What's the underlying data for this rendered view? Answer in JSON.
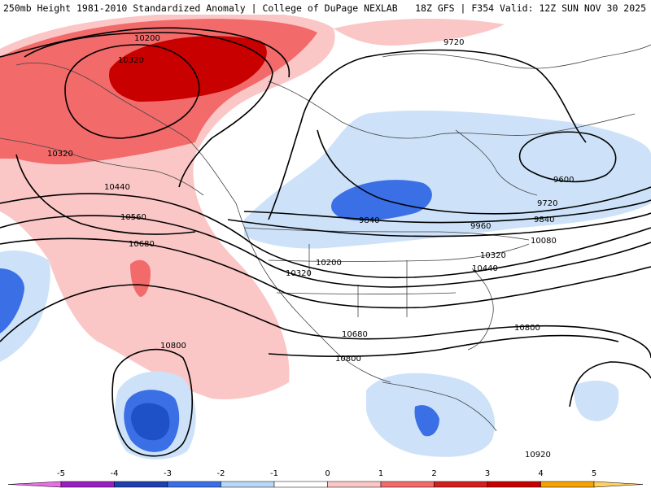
{
  "header": {
    "left_title": "250mb Height 1981-2010 Standardized Anomaly | College of DuPage NEXLAB",
    "right_title": "18Z GFS | F354 Valid: 12Z SUN NOV 30 2025"
  },
  "contour_labels": {
    "l10200_nw": "10200",
    "l10320_nw": "10320",
    "l10320_ak": "10320",
    "l10440_w": "10440",
    "l10560_w": "10560",
    "l10680_w": "10680",
    "l10800_sw": "10800",
    "l9720_n": "9720",
    "l9600_e": "9600",
    "l9720_e": "9720",
    "l9840_c": "9840",
    "l9840_e": "9840",
    "l9960_e": "9960",
    "l10080_e": "10080",
    "l10200_c": "10200",
    "l10320_c": "10320",
    "l10320_e": "10320",
    "l10440_e": "10440",
    "l10680_c": "10680",
    "l10800_c": "10800",
    "l10800_e": "10800",
    "l10920_se": "10920"
  },
  "colorbar": {
    "ticks": [
      "-5",
      "-4",
      "-3",
      "-2",
      "-1",
      "0",
      "1",
      "2",
      "3",
      "4",
      "5"
    ],
    "colors": [
      "#e86ee8",
      "#9a1fc0",
      "#1e3fae",
      "#3a6fe6",
      "#b8d8f8",
      "#ffffff",
      "#fbc6c6",
      "#f26a6a",
      "#d21f1f",
      "#c80000",
      "#f5a300",
      "#ffcf60"
    ]
  }
}
